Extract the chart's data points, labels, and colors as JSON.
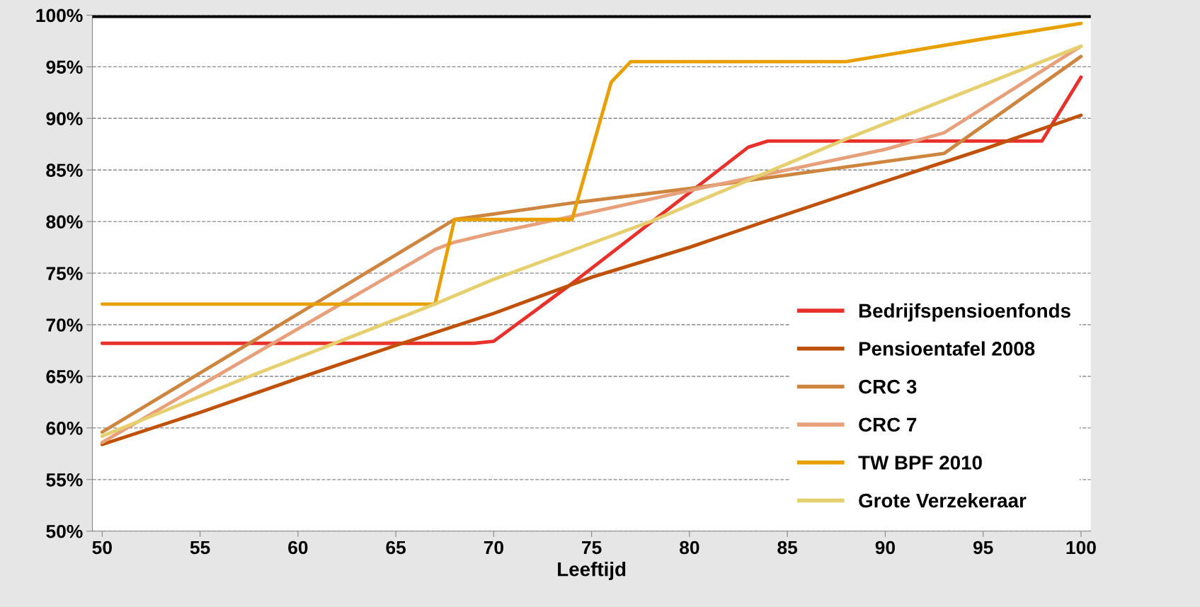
{
  "chart_data": {
    "type": "line",
    "xlabel": "Leeftijd",
    "xlim": [
      49.5,
      100.5
    ],
    "xticks": [
      50,
      55,
      60,
      65,
      70,
      75,
      80,
      85,
      90,
      95,
      100
    ],
    "ylim": [
      50,
      100
    ],
    "yticks": [
      {
        "value": 50,
        "label": "50%"
      },
      {
        "value": 55,
        "label": "55%"
      },
      {
        "value": 60,
        "label": "60%"
      },
      {
        "value": 65,
        "label": "65%"
      },
      {
        "value": 70,
        "label": "70%"
      },
      {
        "value": 75,
        "label": "75%"
      },
      {
        "value": 80,
        "label": "80%"
      },
      {
        "value": 85,
        "label": "85%"
      },
      {
        "value": 90,
        "label": "90%"
      },
      {
        "value": 95,
        "label": "95%"
      },
      {
        "value": 100,
        "label": "100%"
      }
    ],
    "grid": "y",
    "legend": "bottom right",
    "marker": "none",
    "line_style": "solid",
    "ref_lines": [
      {
        "axis": "y",
        "value": 100,
        "label": null,
        "color": "#000000"
      }
    ],
    "series": [
      {
        "name": "Bedrijfspensioenfonds",
        "color": "#e8312a",
        "x": [
          50,
          69,
          70,
          74,
          83,
          84,
          98,
          100
        ],
        "values": [
          68.2,
          68.2,
          68.4,
          74.0,
          87.2,
          87.8,
          87.8,
          94.0
        ]
      },
      {
        "name": "Pensioentafel 2008",
        "color": "#bf5108",
        "x": [
          50,
          55,
          60,
          65,
          70,
          75,
          80,
          84,
          90,
          95,
          100
        ],
        "values": [
          58.4,
          61.5,
          64.8,
          68.0,
          71.1,
          74.6,
          77.5,
          80.1,
          83.9,
          87.0,
          90.3
        ]
      },
      {
        "name": "CRC 3",
        "color": "#cd853f",
        "x": [
          50,
          68,
          74,
          80,
          93,
          100
        ],
        "values": [
          59.6,
          80.2,
          81.8,
          83.2,
          86.6,
          96.0
        ]
      },
      {
        "name": "CRC 7",
        "color": "#e8a07a",
        "x": [
          50,
          67,
          68,
          70,
          74,
          80,
          85,
          90,
          93,
          100
        ],
        "values": [
          58.6,
          77.3,
          78.0,
          78.9,
          80.5,
          83.0,
          85.0,
          87.0,
          88.6,
          97.0
        ]
      },
      {
        "name": "TW BPF 2010",
        "color": "#e8a000",
        "x": [
          50,
          67,
          68,
          74,
          76,
          77,
          88,
          95,
          100
        ],
        "values": [
          72.0,
          72.0,
          80.2,
          80.2,
          93.5,
          95.5,
          95.5,
          97.7,
          99.2
        ]
      },
      {
        "name": "Grote Verzekeraar",
        "color": "#e6cf6e",
        "x": [
          50,
          57,
          67,
          70,
          78,
          88,
          100
        ],
        "values": [
          59.2,
          64.6,
          72.0,
          74.4,
          80.0,
          88.0,
          97.0
        ]
      }
    ]
  }
}
